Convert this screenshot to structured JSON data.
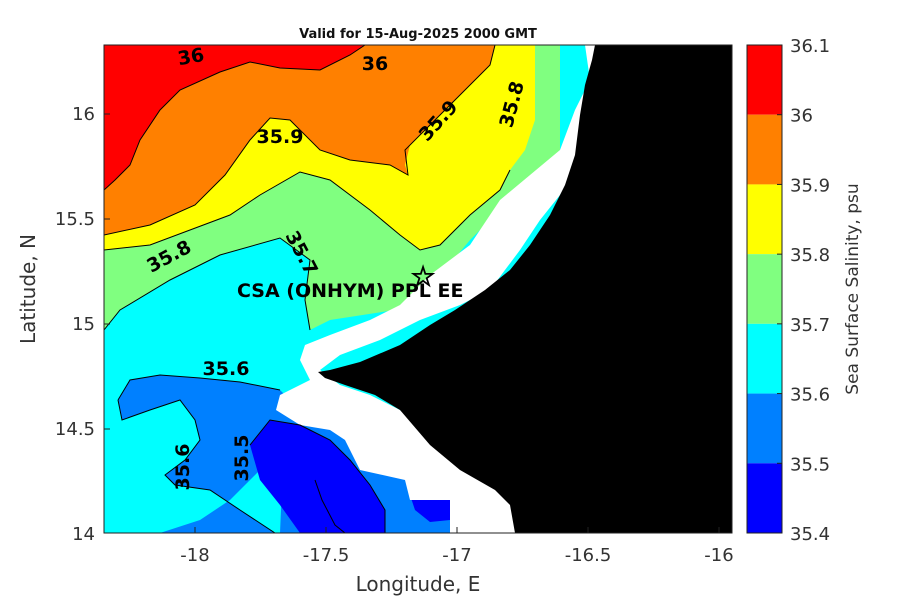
{
  "title": "Valid for 15-Aug-2025 2000 GMT",
  "x_axis": {
    "label": "Longitude, E",
    "ticks": [
      "-18",
      "-17.5",
      "-17",
      "-16.5",
      "-16"
    ]
  },
  "y_axis": {
    "label": "Latitude, N",
    "ticks": [
      "16",
      "15.5",
      "15",
      "14.5",
      "14"
    ]
  },
  "colorbar": {
    "title": "Sea Surface Salinity, psu",
    "ticks": [
      "36.1",
      "36",
      "35.9",
      "35.8",
      "35.7",
      "35.6",
      "35.5",
      "35.4"
    ],
    "colors": [
      "#ff0000",
      "#ff8000",
      "#ffff00",
      "#80ff80",
      "#00ffff",
      "#0080ff",
      "#0000ff"
    ]
  },
  "contour_labels": [
    "36",
    "36",
    "35.9",
    "35.9",
    "35.8",
    "35.8",
    "35.7",
    "35.6",
    "35.6",
    "35.5"
  ],
  "site": {
    "label": "CSA (ONHYM) PPL EE",
    "marker": "star-icon"
  },
  "colors": {
    "land": "#000000",
    "no_data": "#ffffff"
  }
}
